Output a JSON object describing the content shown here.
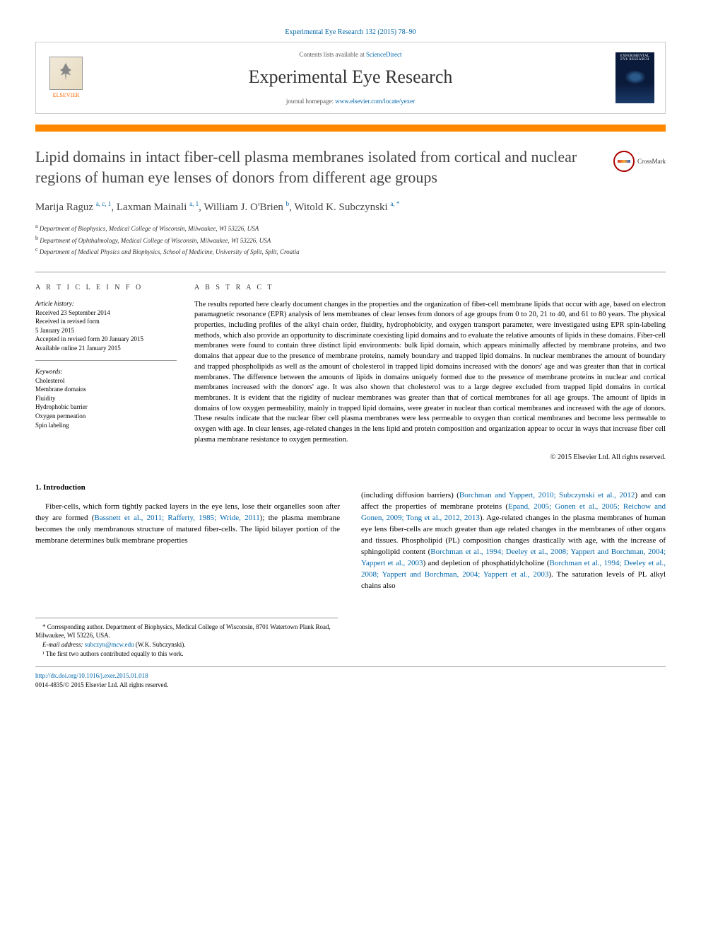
{
  "top_citation": "Experimental Eye Research 132 (2015) 78–90",
  "header": {
    "elsevier_label": "ELSEVIER",
    "contents_prefix": "Contents lists available at ",
    "contents_link": "ScienceDirect",
    "journal_name": "Experimental Eye Research",
    "homepage_prefix": "journal homepage: ",
    "homepage_url": "www.elsevier.com/locate/yexer",
    "cover_title": "EXPERIMENTAL EYE RESEARCH"
  },
  "crossmark_label": "CrossMark",
  "title": "Lipid domains in intact fiber-cell plasma membranes isolated from cortical and nuclear regions of human eye lenses of donors from different age groups",
  "authors_html": "Marija Raguz <sup>a, c, 1</sup>, Laxman Mainali <sup>a, 1</sup>, William J. O'Brien <sup>b</sup>, Witold K. Subczynski <sup>a, *</sup>",
  "affiliations": [
    {
      "sup": "a",
      "text": "Department of Biophysics, Medical College of Wisconsin, Milwaukee, WI 53226, USA"
    },
    {
      "sup": "b",
      "text": "Department of Ophthalmology, Medical College of Wisconsin, Milwaukee, WI 53226, USA"
    },
    {
      "sup": "c",
      "text": "Department of Medical Physics and Biophysics, School of Medicine, University of Split, Split, Croatia"
    }
  ],
  "info": {
    "heading": "A R T I C L E   I N F O",
    "history_label": "Article history:",
    "history": [
      "Received 23 September 2014",
      "Received in revised form",
      "5 January 2015",
      "Accepted in revised form 20 January 2015",
      "Available online 21 January 2015"
    ],
    "keywords_label": "Keywords:",
    "keywords": [
      "Cholesterol",
      "Membrane domains",
      "Fluidity",
      "Hydrophobic barrier",
      "Oxygen permeation",
      "Spin labeling"
    ]
  },
  "abstract": {
    "heading": "A B S T R A C T",
    "text": "The results reported here clearly document changes in the properties and the organization of fiber-cell membrane lipids that occur with age, based on electron paramagnetic resonance (EPR) analysis of lens membranes of clear lenses from donors of age groups from 0 to 20, 21 to 40, and 61 to 80 years. The physical properties, including profiles of the alkyl chain order, fluidity, hydrophobicity, and oxygen transport parameter, were investigated using EPR spin-labeling methods, which also provide an opportunity to discriminate coexisting lipid domains and to evaluate the relative amounts of lipids in these domains. Fiber-cell membranes were found to contain three distinct lipid environments: bulk lipid domain, which appears minimally affected by membrane proteins, and two domains that appear due to the presence of membrane proteins, namely boundary and trapped lipid domains. In nuclear membranes the amount of boundary and trapped phospholipids as well as the amount of cholesterol in trapped lipid domains increased with the donors' age and was greater than that in cortical membranes. The difference between the amounts of lipids in domains uniquely formed due to the presence of membrane proteins in nuclear and cortical membranes increased with the donors' age. It was also shown that cholesterol was to a large degree excluded from trapped lipid domains in cortical membranes. It is evident that the rigidity of nuclear membranes was greater than that of cortical membranes for all age groups. The amount of lipids in domains of low oxygen permeability, mainly in trapped lipid domains, were greater in nuclear than cortical membranes and increased with the age of donors. These results indicate that the nuclear fiber cell plasma membranes were less permeable to oxygen than cortical membranes and become less permeable to oxygen with age. In clear lenses, age-related changes in the lens lipid and protein composition and organization appear to occur in ways that increase fiber cell plasma membrane resistance to oxygen permeation.",
    "copyright": "© 2015 Elsevier Ltd. All rights reserved."
  },
  "intro": {
    "heading": "1. Introduction",
    "col1_pre": "Fiber-cells, which form tightly packed layers in the eye lens, lose their organelles soon after they are formed (",
    "col1_cite1": "Bassnett et al., 2011; Rafferty, 1985; Wride, 2011",
    "col1_post": "); the plasma membrane becomes the only membranous structure of matured fiber-cells. The lipid bilayer portion of the membrane determines bulk membrane properties",
    "col2_p1_pre": "(including diffusion barriers) (",
    "col2_p1_cite1": "Borchman and Yappert, 2010; Subczynski et al., 2012",
    "col2_p1_mid1": ") and can affect the properties of membrane proteins (",
    "col2_p1_cite2": "Epand, 2005; Gonen et al., 2005; Reichow and Gonen, 2009; Tong et al., 2012, 2013",
    "col2_p1_mid2": "). Age-related changes in the plasma membranes of human eye lens fiber-cells are much greater than age related changes in the membranes of other organs and tissues. Phospholipid (PL) composition changes drastically with age, with the increase of sphingolipid content (",
    "col2_p1_cite3": "Borchman et al., 1994; Deeley et al., 2008; Yappert and Borchman, 2004; Yappert et al., 2003",
    "col2_p1_mid3": ") and depletion of phosphatidylcholine (",
    "col2_p1_cite4": "Borchman et al., 1994; Deeley et al., 2008; Yappert and Borchman, 2004; Yappert et al., 2003",
    "col2_p1_post": "). The saturation levels of PL alkyl chains also"
  },
  "footnotes": {
    "corr": "* Corresponding author. Department of Biophysics, Medical College of Wisconsin, 8701 Watertown Plank Road, Milwaukee, WI 53226, USA.",
    "email_label": "E-mail address: ",
    "email": "subczyn@mcw.edu",
    "email_suffix": " (W.K. Subczynski).",
    "note1": "¹ The first two authors contributed equally to this work."
  },
  "bottom": {
    "doi": "http://dx.doi.org/10.1016/j.exer.2015.01.018",
    "issn_line": "0014-4835/© 2015 Elsevier Ltd. All rights reserved."
  }
}
